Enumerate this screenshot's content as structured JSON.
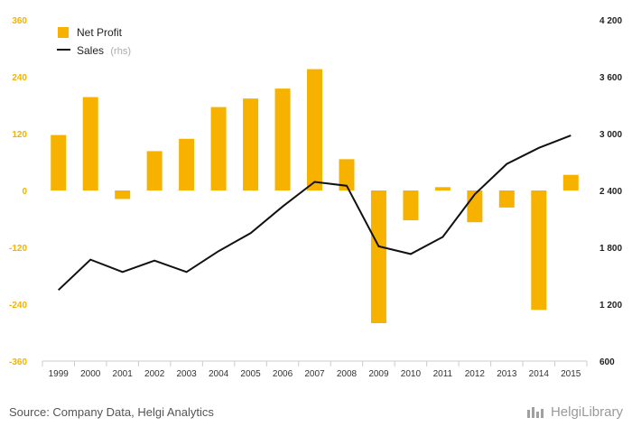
{
  "chart_data": {
    "type": "bar+line",
    "categories": [
      "1999",
      "2000",
      "2001",
      "2002",
      "2003",
      "2004",
      "2005",
      "2006",
      "2007",
      "2008",
      "2009",
      "2010",
      "2011",
      "2012",
      "2013",
      "2014",
      "2015"
    ],
    "series": [
      {
        "name": "Net Profit",
        "type": "bar",
        "axis": "left",
        "values": [
          117,
          197,
          -18,
          83,
          109,
          176,
          194,
          215,
          256,
          66,
          -280,
          -63,
          7,
          -67,
          -36,
          -252,
          33
        ]
      },
      {
        "name": "Sales",
        "type": "line",
        "axis": "right",
        "values": [
          1350,
          1670,
          1540,
          1660,
          1540,
          1760,
          1950,
          2230,
          2490,
          2450,
          1810,
          1730,
          1910,
          2360,
          2680,
          2850,
          2980
        ]
      }
    ],
    "left_axis": {
      "min": -360,
      "max": 360,
      "ticks": [
        -360,
        -240,
        -120,
        0,
        120,
        240,
        360
      ],
      "tick_labels": [
        "-360",
        "-240",
        "-120",
        "0",
        "120",
        "240",
        "360"
      ]
    },
    "right_axis": {
      "min": 600,
      "max": 4200,
      "ticks": [
        600,
        1200,
        1800,
        2400,
        3000,
        3600,
        4200
      ],
      "tick_labels": [
        "600",
        "1 200",
        "1 800",
        "2 400",
        "3 000",
        "3 600",
        "4 200"
      ]
    },
    "legend": {
      "placement": "top-left",
      "items": [
        {
          "label": "Net Profit",
          "sub": ""
        },
        {
          "label": "Sales",
          "sub": "(rhs)"
        }
      ]
    },
    "colors": {
      "bar": "#f7b200",
      "line": "#111111",
      "left_ticks": "#f2b400"
    },
    "grid": false
  },
  "footer": {
    "source": "Source: Company Data, Helgi Analytics",
    "logo": "HelgiLibrary"
  }
}
